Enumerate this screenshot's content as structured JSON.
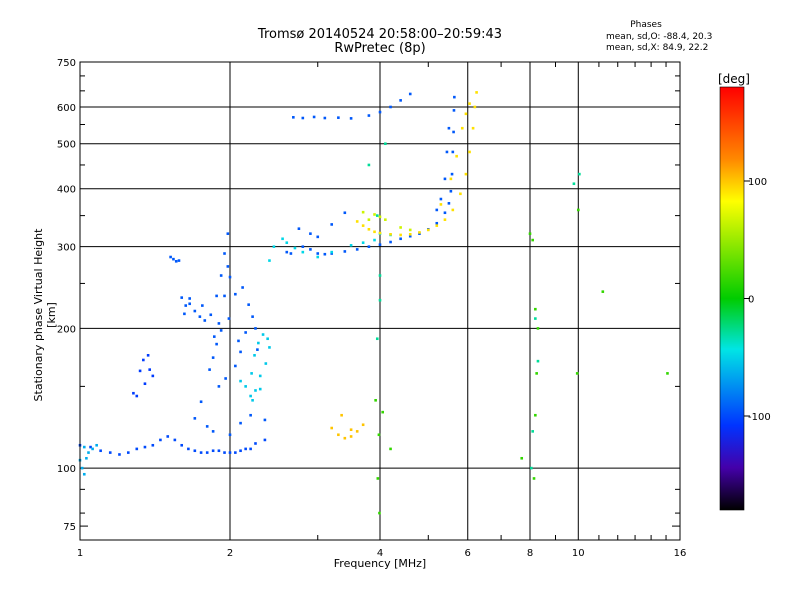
{
  "chart_data": {
    "type": "scatter",
    "title": "Tromsø 20140524 20:58:00–20:59:43",
    "subtitle": "RwPretec (8p)",
    "xlabel": "Frequency [MHz]",
    "ylabel": "Stationary phase Virtual Height [km]",
    "x_scale": "log",
    "y_scale": "log",
    "xlim": [
      1,
      16
    ],
    "ylim": [
      70,
      750
    ],
    "x_ticks": [
      1,
      2,
      4,
      6,
      8,
      10,
      16
    ],
    "y_ticks": [
      75,
      100,
      200,
      300,
      400,
      500,
      600,
      750
    ],
    "grid": true,
    "phase_stats": {
      "title": "Phases",
      "line_o": "mean, sd,O: -88.4, 20.3",
      "line_x": "mean, sd,X:  84.9, 22.2"
    },
    "colorbar": {
      "label": "[deg]",
      "min": -180,
      "max": 180,
      "ticks": [
        100,
        0,
        -100
      ]
    },
    "series": [
      {
        "points": [
          [
            1.0,
            112
          ],
          [
            1.05,
            111
          ],
          [
            1.1,
            109
          ],
          [
            1.15,
            108
          ],
          [
            1.2,
            107
          ],
          [
            1.25,
            108
          ],
          [
            1.3,
            110
          ],
          [
            1.35,
            111
          ],
          [
            1.4,
            112
          ],
          [
            1.45,
            115
          ],
          [
            1.5,
            117
          ],
          [
            1.55,
            115
          ],
          [
            1.6,
            112
          ],
          [
            1.65,
            110
          ],
          [
            1.7,
            109
          ],
          [
            1.75,
            108
          ],
          [
            1.8,
            108
          ],
          [
            1.85,
            109
          ],
          [
            1.9,
            109
          ],
          [
            1.95,
            108
          ],
          [
            2.0,
            108
          ],
          [
            2.05,
            108
          ],
          [
            2.1,
            109
          ],
          [
            2.15,
            110
          ],
          [
            2.2,
            110
          ],
          [
            2.25,
            113
          ],
          [
            2.35,
            115
          ]
        ],
        "phase": -100
      },
      {
        "points": [
          [
            1.01,
            100
          ],
          [
            1.02,
            97
          ],
          [
            1.0,
            104
          ],
          [
            1.03,
            105
          ],
          [
            1.04,
            108
          ],
          [
            1.06,
            110
          ],
          [
            1.08,
            112
          ],
          [
            1.02,
            111
          ]
        ],
        "phase": -65
      },
      {
        "points": [
          [
            1.32,
            162
          ],
          [
            1.34,
            171
          ],
          [
            1.37,
            175
          ],
          [
            1.38,
            163
          ],
          [
            1.4,
            158
          ],
          [
            1.35,
            152
          ],
          [
            1.28,
            145
          ],
          [
            1.3,
            143
          ]
        ],
        "phase": -105
      },
      {
        "points": [
          [
            1.52,
            285
          ],
          [
            1.54,
            282
          ],
          [
            1.56,
            279
          ],
          [
            1.58,
            280
          ],
          [
            1.6,
            233
          ],
          [
            1.63,
            224
          ],
          [
            1.66,
            226
          ],
          [
            1.7,
            218
          ],
          [
            1.74,
            212
          ],
          [
            1.78,
            208
          ],
          [
            1.83,
            214
          ],
          [
            1.88,
            235
          ],
          [
            1.92,
            260
          ],
          [
            1.95,
            290
          ],
          [
            1.98,
            320
          ],
          [
            1.92,
            198
          ],
          [
            1.88,
            185
          ],
          [
            1.85,
            173
          ],
          [
            1.82,
            163
          ],
          [
            1.86,
            192
          ],
          [
            1.9,
            205
          ],
          [
            1.95,
            235
          ],
          [
            1.98,
            272
          ],
          [
            2.0,
            258
          ],
          [
            2.05,
            237
          ],
          [
            2.12,
            245
          ],
          [
            2.18,
            225
          ],
          [
            2.22,
            212
          ],
          [
            2.25,
            200
          ],
          [
            2.1,
            178
          ],
          [
            2.05,
            166
          ],
          [
            1.96,
            156
          ],
          [
            1.9,
            150
          ],
          [
            1.75,
            139
          ],
          [
            1.7,
            128
          ],
          [
            1.8,
            123
          ],
          [
            1.85,
            120
          ],
          [
            2.0,
            118
          ],
          [
            2.1,
            125
          ],
          [
            2.2,
            130
          ],
          [
            2.35,
            127
          ],
          [
            1.62,
            215
          ],
          [
            1.66,
            232
          ],
          [
            1.76,
            224
          ],
          [
            2.15,
            196
          ],
          [
            2.08,
            188
          ],
          [
            1.99,
            210
          ],
          [
            2.27,
            180
          ]
        ],
        "phase": -95
      },
      {
        "points": [
          [
            2.22,
            140
          ],
          [
            2.25,
            147
          ],
          [
            2.3,
            158
          ],
          [
            2.36,
            168
          ],
          [
            2.4,
            182
          ],
          [
            2.38,
            190
          ],
          [
            2.33,
            194
          ],
          [
            2.28,
            186
          ],
          [
            2.24,
            175
          ],
          [
            2.21,
            160
          ],
          [
            2.1,
            154
          ],
          [
            2.15,
            150
          ],
          [
            2.3,
            148
          ],
          [
            2.2,
            143
          ]
        ],
        "phase": -55
      },
      {
        "points": [
          [
            2.6,
            292
          ],
          [
            2.65,
            290
          ],
          [
            2.8,
            300
          ],
          [
            2.9,
            296
          ],
          [
            3.0,
            290
          ],
          [
            3.1,
            289
          ],
          [
            3.2,
            290
          ],
          [
            3.4,
            293
          ],
          [
            3.6,
            296
          ],
          [
            3.8,
            300
          ],
          [
            4.0,
            303
          ],
          [
            4.2,
            307
          ],
          [
            4.4,
            312
          ],
          [
            4.6,
            316
          ],
          [
            4.8,
            320
          ],
          [
            5.0,
            327
          ],
          [
            5.2,
            337
          ],
          [
            5.4,
            355
          ],
          [
            5.5,
            372
          ],
          [
            5.55,
            395
          ],
          [
            5.58,
            430
          ],
          [
            5.6,
            480
          ],
          [
            5.62,
            530
          ],
          [
            5.63,
            590
          ],
          [
            5.64,
            630
          ],
          [
            5.5,
            540
          ],
          [
            5.45,
            480
          ],
          [
            5.4,
            420
          ],
          [
            5.3,
            380
          ],
          [
            5.2,
            360
          ],
          [
            2.68,
            570
          ],
          [
            2.8,
            568
          ],
          [
            2.95,
            571
          ],
          [
            3.1,
            568
          ],
          [
            3.3,
            569
          ],
          [
            3.5,
            567
          ],
          [
            3.8,
            575
          ],
          [
            4.0,
            585
          ],
          [
            4.2,
            600
          ],
          [
            4.4,
            620
          ],
          [
            4.6,
            640
          ],
          [
            3.0,
            315
          ],
          [
            3.2,
            335
          ],
          [
            3.4,
            355
          ],
          [
            2.9,
            320
          ],
          [
            2.75,
            328
          ]
        ],
        "phase": -95
      },
      {
        "points": [
          [
            2.4,
            280
          ],
          [
            2.45,
            300
          ],
          [
            2.55,
            312
          ],
          [
            2.6,
            306
          ],
          [
            2.7,
            298
          ],
          [
            2.8,
            292
          ],
          [
            3.0,
            285
          ],
          [
            3.2,
            292
          ],
          [
            3.5,
            302
          ],
          [
            4.0,
            320
          ],
          [
            4.2,
            318
          ],
          [
            3.9,
            310
          ],
          [
            3.7,
            306
          ]
        ],
        "phase": -50
      },
      {
        "points": [
          [
            3.6,
            340
          ],
          [
            3.7,
            333
          ],
          [
            3.8,
            327
          ],
          [
            3.9,
            323
          ],
          [
            4.0,
            321
          ],
          [
            4.2,
            319
          ],
          [
            4.4,
            318
          ],
          [
            4.6,
            319
          ],
          [
            4.8,
            322
          ],
          [
            5.0,
            326
          ],
          [
            5.2,
            333
          ],
          [
            5.4,
            343
          ],
          [
            5.6,
            360
          ],
          [
            5.8,
            390
          ],
          [
            5.95,
            430
          ],
          [
            6.05,
            480
          ],
          [
            6.15,
            540
          ],
          [
            6.2,
            600
          ],
          [
            6.25,
            645
          ],
          [
            6.05,
            610
          ],
          [
            5.95,
            580
          ],
          [
            5.85,
            540
          ],
          [
            5.7,
            470
          ],
          [
            5.55,
            420
          ],
          [
            5.3,
            370
          ]
        ],
        "phase": 105
      },
      {
        "points": [
          [
            3.2,
            122
          ],
          [
            3.3,
            118
          ],
          [
            3.4,
            116
          ],
          [
            3.5,
            117
          ],
          [
            3.6,
            120
          ],
          [
            3.7,
            124
          ],
          [
            3.35,
            130
          ],
          [
            3.5,
            121
          ]
        ],
        "phase": 110
      },
      {
        "points": [
          [
            3.9,
            352
          ],
          [
            4.0,
            348
          ],
          [
            4.1,
            343
          ],
          [
            3.7,
            356
          ],
          [
            3.8,
            343
          ],
          [
            4.4,
            330
          ],
          [
            4.6,
            326
          ]
        ],
        "phase": 80
      },
      {
        "points": [
          [
            3.98,
            118
          ],
          [
            3.92,
            140
          ],
          [
            4.05,
            132
          ],
          [
            3.96,
            95
          ],
          [
            3.99,
            80
          ],
          [
            4.2,
            110
          ],
          [
            8.15,
            95
          ],
          [
            8.2,
            130
          ],
          [
            8.25,
            160
          ],
          [
            8.3,
            200
          ],
          [
            8.2,
            220
          ],
          [
            8.1,
            310
          ],
          [
            8.0,
            320
          ],
          [
            9.95,
            160
          ],
          [
            10.0,
            360
          ],
          [
            7.7,
            105
          ],
          [
            11.2,
            240
          ],
          [
            15.1,
            160
          ]
        ],
        "phase": 20
      },
      {
        "points": [
          [
            4.0,
            230
          ],
          [
            4.0,
            260
          ],
          [
            3.95,
            190
          ],
          [
            8.05,
            100
          ],
          [
            8.1,
            120
          ],
          [
            8.2,
            210
          ],
          [
            9.8,
            410
          ],
          [
            10.05,
            430
          ],
          [
            8.3,
            170
          ],
          [
            3.95,
            350
          ],
          [
            3.8,
            450
          ],
          [
            4.1,
            500
          ]
        ],
        "phase": -30
      }
    ]
  }
}
